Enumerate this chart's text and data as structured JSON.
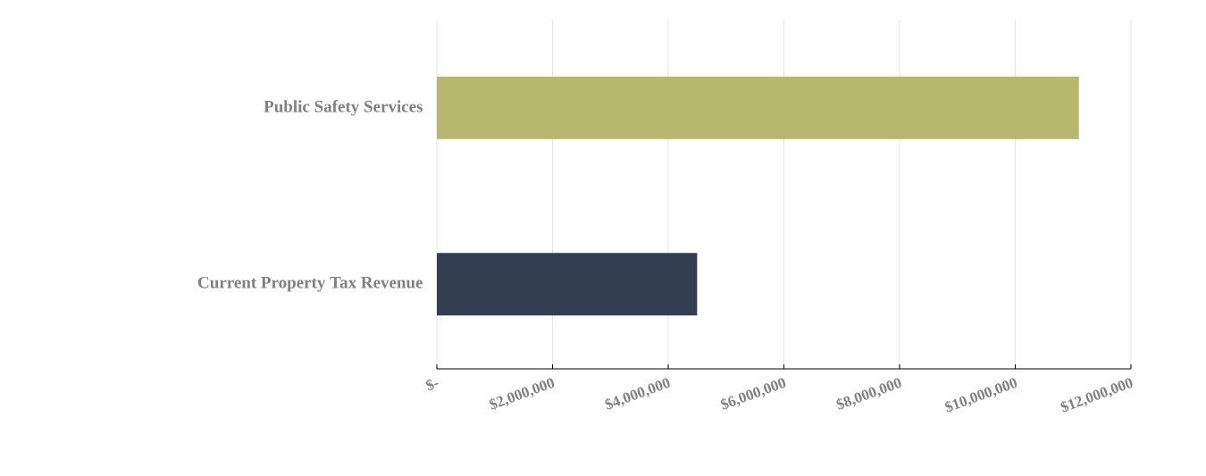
{
  "chart_data": {
    "type": "bar",
    "orientation": "horizontal",
    "categories": [
      "Public Safety Services",
      "Current Property Tax Revenue"
    ],
    "values": [
      11100000,
      4500000
    ],
    "colors": [
      "#b8b770",
      "#333e50"
    ],
    "xlim": [
      0,
      12000000
    ],
    "xticks": [
      {
        "value": 0,
        "label": "$-"
      },
      {
        "value": 2000000,
        "label": "$2,000,000"
      },
      {
        "value": 4000000,
        "label": "$4,000,000"
      },
      {
        "value": 6000000,
        "label": "$6,000,000"
      },
      {
        "value": 8000000,
        "label": "$8,000,000"
      },
      {
        "value": 10000000,
        "label": "$10,000,000"
      },
      {
        "value": 12000000,
        "label": "$12,000,000"
      }
    ],
    "grid": "x"
  }
}
